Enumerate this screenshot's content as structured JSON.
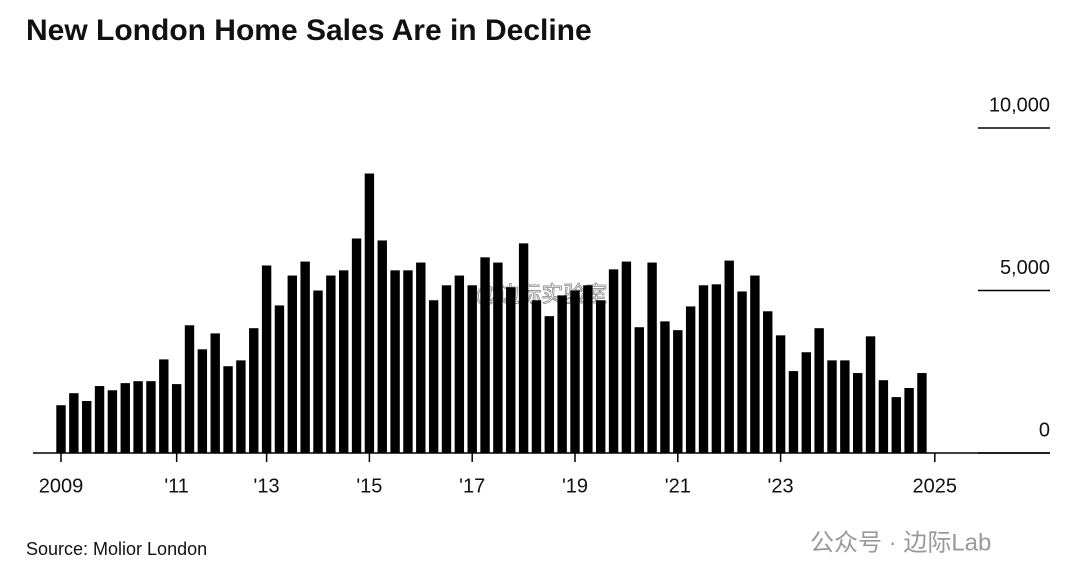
{
  "chart_data": {
    "type": "bar",
    "title": "New London Home Sales Are in Decline",
    "source": "Source: Molior London",
    "annotations": [
      "@边际实验室",
      "公众号 · 边际Lab"
    ],
    "color": "#000000",
    "categories": [
      "2009",
      null,
      null,
      null,
      null,
      null,
      null,
      null,
      null,
      "'11",
      null,
      null,
      null,
      null,
      null,
      null,
      "'13",
      null,
      null,
      null,
      null,
      null,
      null,
      null,
      "'15",
      null,
      null,
      null,
      null,
      null,
      null,
      null,
      "'17",
      null,
      null,
      null,
      null,
      null,
      null,
      null,
      "'19",
      null,
      null,
      null,
      null,
      null,
      null,
      null,
      "'21",
      null,
      null,
      null,
      null,
      null,
      null,
      null,
      "'23",
      null,
      null,
      null,
      null,
      null,
      null,
      null,
      null,
      null,
      null,
      null,
      "2025"
    ],
    "values": [
      1470,
      1840,
      1600,
      2060,
      1930,
      2150,
      2210,
      2210,
      2880,
      2120,
      3930,
      3190,
      3680,
      2670,
      2850,
      3840,
      5770,
      4540,
      5460,
      5890,
      5000,
      5460,
      5620,
      6600,
      8600,
      6540,
      5620,
      5620,
      5860,
      4700,
      5160,
      5460,
      5160,
      6020,
      5860,
      5100,
      6450,
      4700,
      4210,
      4850,
      5000,
      5160,
      4700,
      5650,
      5890,
      3870,
      5860,
      4050,
      3780,
      4510,
      5160,
      5190,
      5920,
      4970,
      5460,
      4360,
      3620,
      2520,
      3100,
      3840,
      2850,
      2850,
      2460,
      3590,
      2240,
      1720,
      2000,
      2460,
      null
    ],
    "ylim": [
      0,
      10000
    ],
    "yticks": [
      0,
      {
        "value": 5000,
        "label": "5,000"
      },
      {
        "value": 10000,
        "label": "10,000"
      }
    ]
  }
}
